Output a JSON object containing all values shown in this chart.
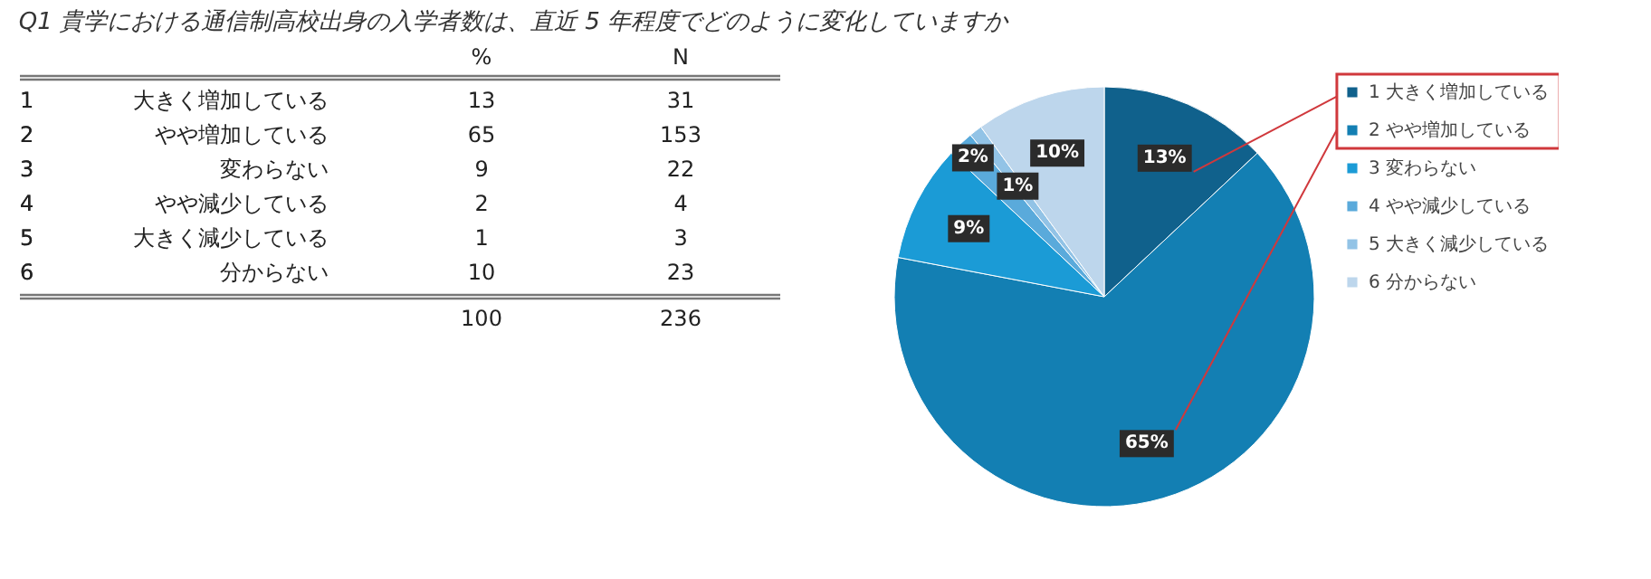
{
  "chart_data": [
    {
      "type": "heatmap",
      "title": "Q1 貴学における通信制高校出身の入学者数は、直近 5 年程度でどのように変化していますか",
      "categories": [
        "%",
        "N"
      ],
      "y_categories": [
        "大きく増加している",
        "やや増加している",
        "変わらない",
        "やや減少している",
        "大きく減少している",
        "分からない"
      ],
      "y2_categories": [
        "1",
        "2",
        "3",
        "4",
        "5",
        "6"
      ],
      "cells": [
        [
          13,
          31
        ],
        [
          65,
          153
        ],
        [
          9,
          22
        ],
        [
          2,
          4
        ],
        [
          1,
          3
        ],
        [
          10,
          23
        ]
      ],
      "totals": [
        "100",
        "236"
      ],
      "data_labels": true
    },
    {
      "type": "pie",
      "categories": [
        "1 大きく増加している",
        "2 やや増加している",
        "3 変わらない",
        "4 やや減少している",
        "5 大きく減少している",
        "6 分からない"
      ],
      "values": [
        13,
        65,
        9,
        2,
        1,
        10
      ],
      "colors": [
        "#10618c",
        "#137fb3",
        "#1b9bd6",
        "#5aaadb",
        "#92c3e6",
        "#bdd6ec"
      ],
      "value_labels": [
        "13%",
        "65%",
        "9%",
        "2%",
        "1%",
        "10%"
      ],
      "legend": "right"
    }
  ]
}
